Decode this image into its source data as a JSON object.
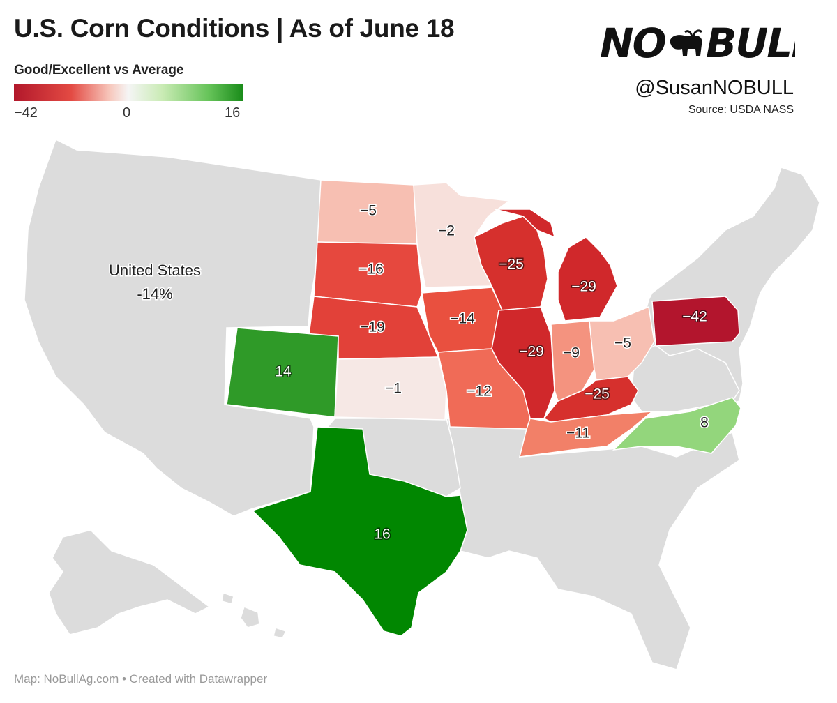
{
  "title": "U.S. Corn Conditions | As of June 18",
  "legend": {
    "title": "Good/Excellent vs Average",
    "min_label": "−42",
    "mid_label": "0",
    "max_label": "16",
    "colors": [
      "#b2182b",
      "#e34a43",
      "#f7c8bd",
      "#f5f5f5",
      "#c9ebb4",
      "#67c45a",
      "#1a8c1a"
    ]
  },
  "brand": {
    "logo_text": "NO BULL",
    "handle": "@SusanNOBULL",
    "source": "Source: USDA NASS"
  },
  "national": {
    "label": "United States",
    "value": "-14%"
  },
  "footer": "Map: NoBullAg.com • Created with Datawrapper",
  "colors": {
    "no_data": "#dcdcdc",
    "border": "#ffffff"
  },
  "states": [
    {
      "name": "North Dakota",
      "value": -5,
      "label": "−5",
      "color": "#f7bfb2"
    },
    {
      "name": "Minnesota",
      "value": -2,
      "label": "−2",
      "color": "#f7e0db"
    },
    {
      "name": "South Dakota",
      "value": -16,
      "label": "−16",
      "color": "#e6483e"
    },
    {
      "name": "Wisconsin",
      "value": -25,
      "label": "−25",
      "color": "#d6302d"
    },
    {
      "name": "Michigan",
      "value": -29,
      "label": "−29",
      "color": "#d0282b"
    },
    {
      "name": "Nebraska",
      "value": -19,
      "label": "−19",
      "color": "#e24139"
    },
    {
      "name": "Iowa",
      "value": -14,
      "label": "−14",
      "color": "#e9503f"
    },
    {
      "name": "Illinois",
      "value": -29,
      "label": "−29",
      "color": "#d0282b"
    },
    {
      "name": "Indiana",
      "value": -9,
      "label": "−9",
      "color": "#f4937f"
    },
    {
      "name": "Ohio",
      "value": -5,
      "label": "−5",
      "color": "#f7bfb2"
    },
    {
      "name": "Pennsylvania",
      "value": -42,
      "label": "−42",
      "color": "#b3152d"
    },
    {
      "name": "Colorado",
      "value": 14,
      "label": "14",
      "color": "#2f9a28"
    },
    {
      "name": "Kansas",
      "value": -1,
      "label": "−1",
      "color": "#f6e8e5"
    },
    {
      "name": "Missouri",
      "value": -12,
      "label": "−12",
      "color": "#f06b57"
    },
    {
      "name": "Kentucky",
      "value": -25,
      "label": "−25",
      "color": "#d6302d"
    },
    {
      "name": "Tennessee",
      "value": -11,
      "label": "−11",
      "color": "#f28068"
    },
    {
      "name": "North Carolina",
      "value": 8,
      "label": "8",
      "color": "#93d67c"
    },
    {
      "name": "Texas",
      "value": 16,
      "label": "16",
      "color": "#018701"
    }
  ]
}
